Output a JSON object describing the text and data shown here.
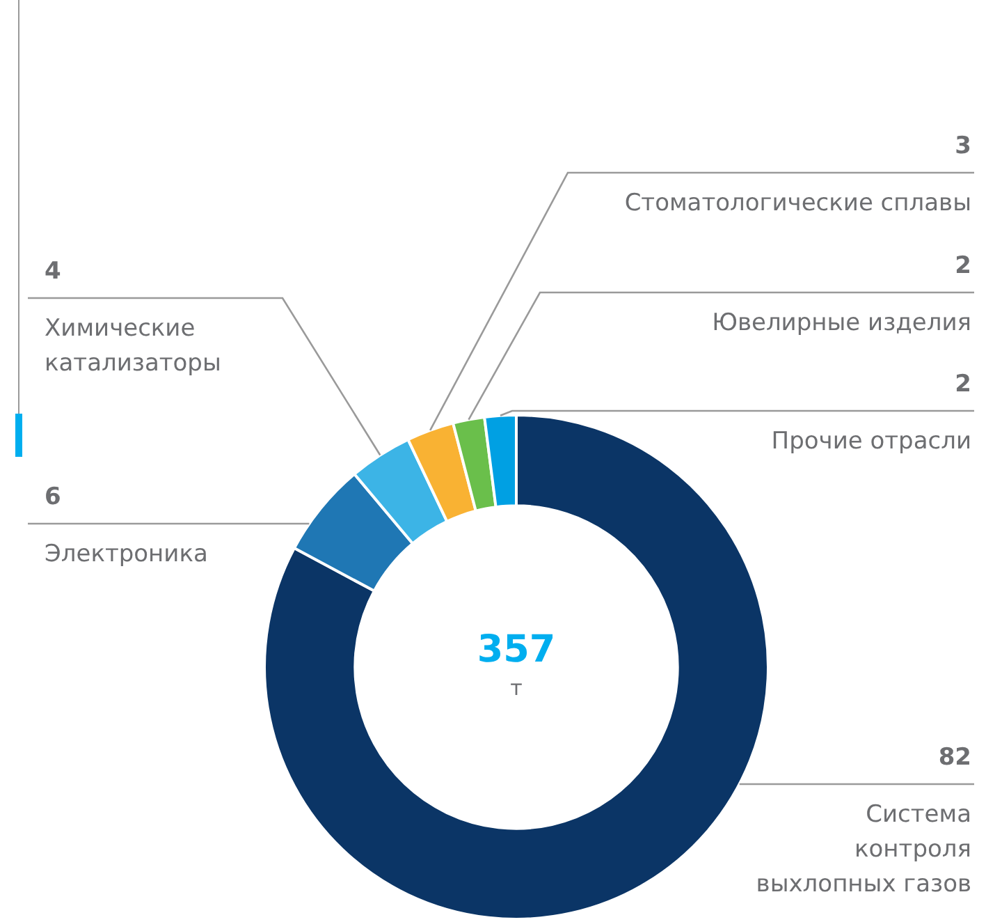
{
  "chart_data": {
    "type": "donut",
    "categories": [
      "Система контроля выхлопных газов",
      "Электроника",
      "Химические катализаторы",
      "Стоматологические сплавы",
      "Ювелирные изделия",
      "Прочие отрасли"
    ],
    "values": [
      82,
      6,
      4,
      3,
      2,
      2
    ],
    "colors": [
      "#0b3566",
      "#1f77b4",
      "#3cb4e6",
      "#f9b233",
      "#6abf4b",
      "#00a0e3"
    ],
    "data_labels": true,
    "annotations": [
      "357",
      "т"
    ],
    "legend": false
  }
}
